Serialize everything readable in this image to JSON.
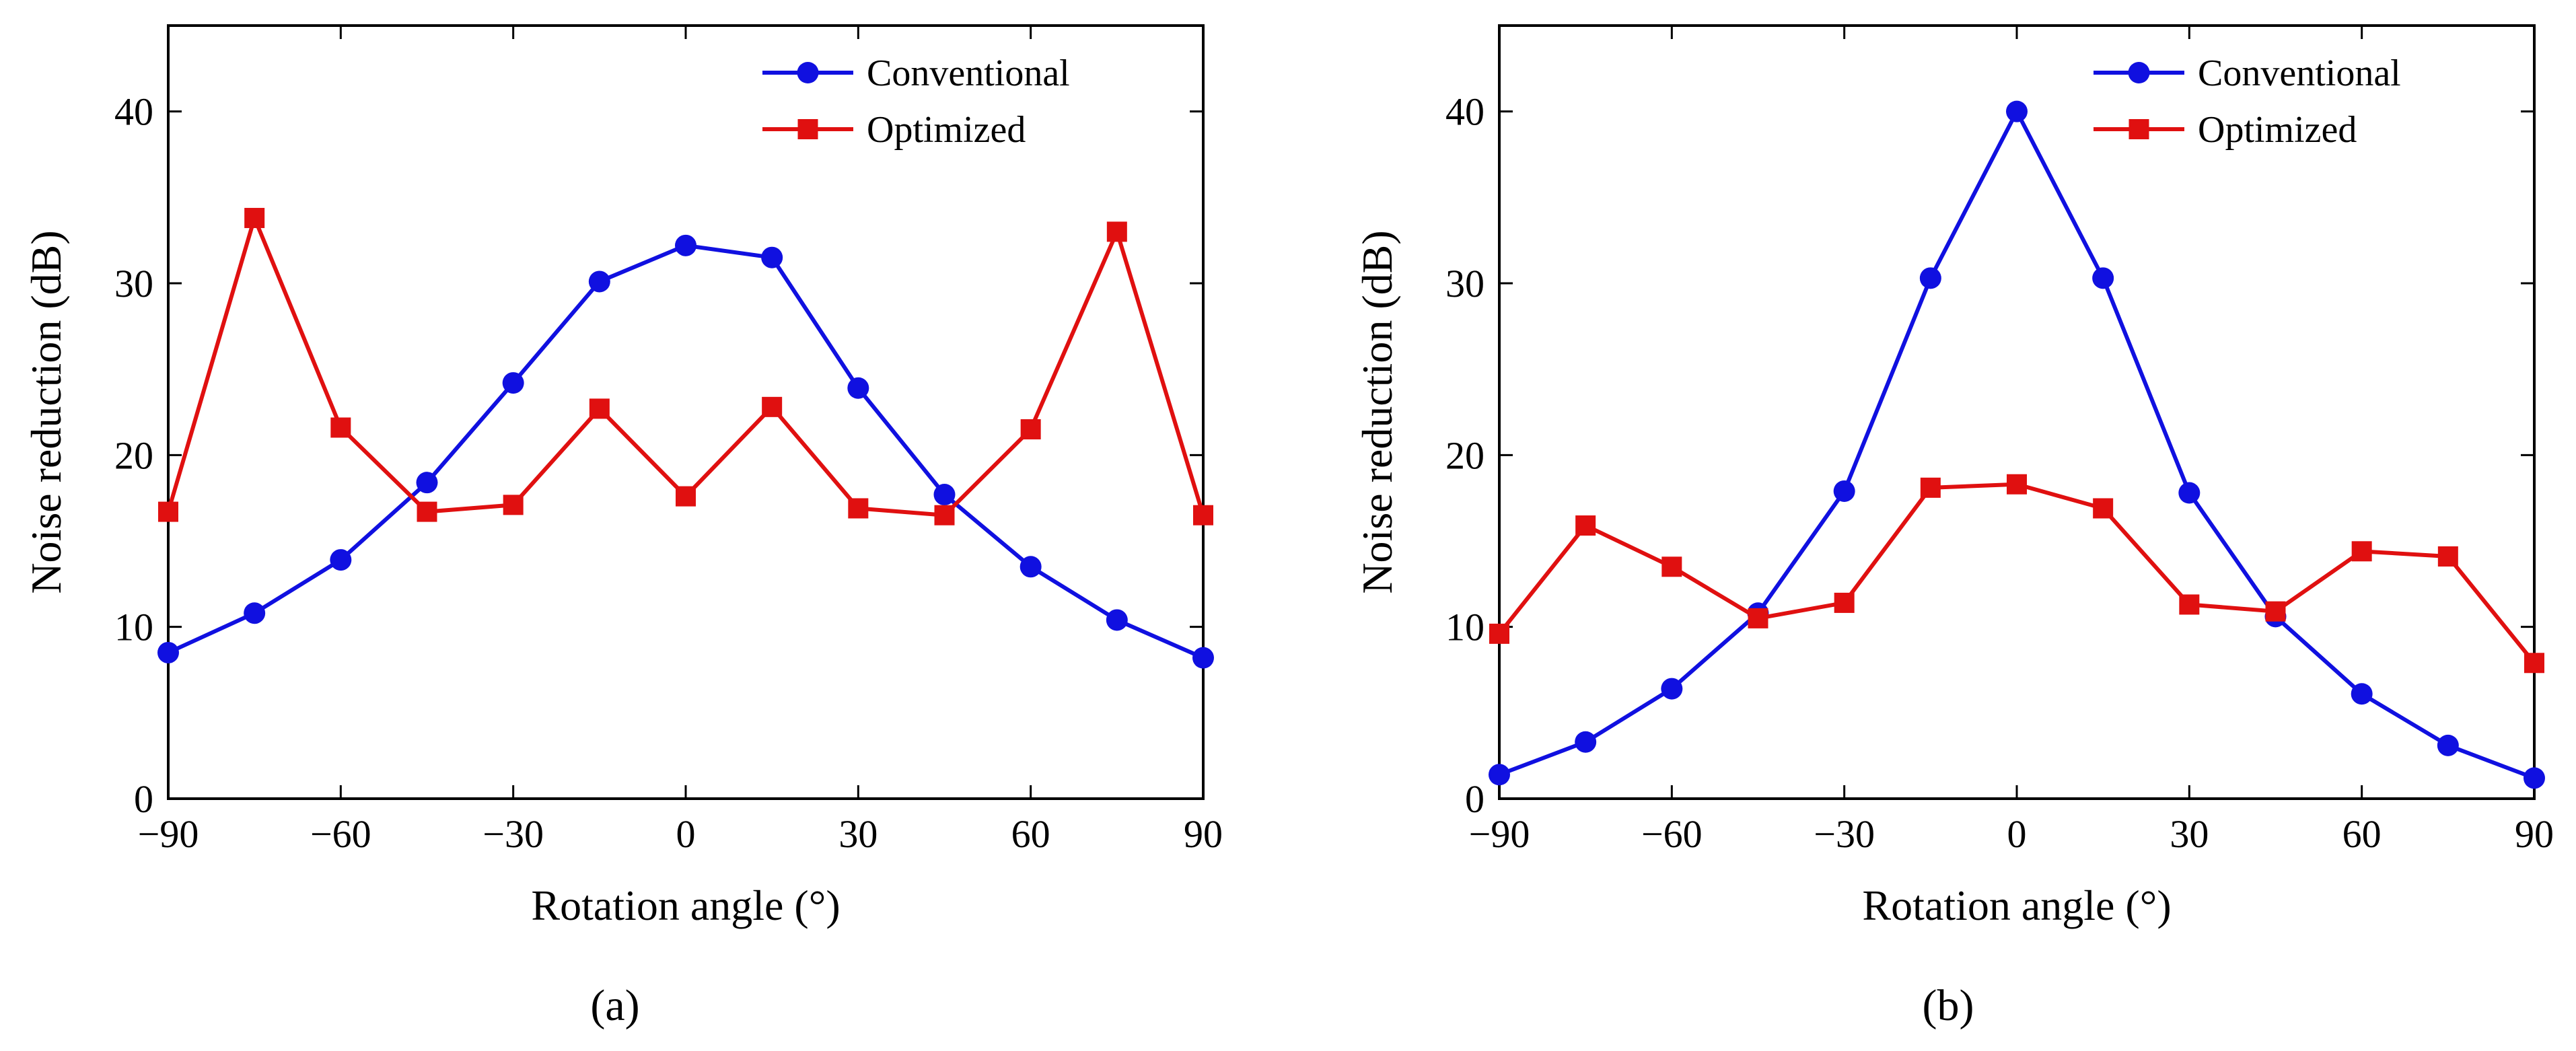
{
  "chart_data": [
    {
      "type": "line",
      "panel_label": "(a)",
      "xlabel": "Rotation angle (°)",
      "ylabel": "Noise reduction (dB)",
      "xlim": [
        -90,
        90
      ],
      "ylim": [
        0,
        45
      ],
      "xticks": [
        "−90",
        "−60",
        "−30",
        "0",
        "30",
        "60",
        "90"
      ],
      "xtick_values": [
        -90,
        -60,
        -30,
        0,
        30,
        60,
        90
      ],
      "yticks": [
        "0",
        "10",
        "20",
        "30",
        "40"
      ],
      "ytick_values": [
        0,
        10,
        20,
        30,
        40
      ],
      "grid": false,
      "legend_position": "top-right",
      "x": [
        -90,
        -75,
        -60,
        -45,
        -30,
        -15,
        0,
        15,
        30,
        45,
        60,
        75,
        90
      ],
      "series": [
        {
          "name": "Conventional",
          "color": "#1010e0",
          "marker": "circle",
          "values": [
            8.5,
            10.8,
            13.9,
            18.4,
            24.2,
            30.1,
            32.2,
            31.5,
            23.9,
            17.7,
            13.5,
            10.4,
            8.2
          ]
        },
        {
          "name": "Optimized",
          "color": "#e01010",
          "marker": "square",
          "values": [
            16.7,
            33.8,
            21.6,
            16.7,
            17.1,
            22.7,
            17.6,
            22.8,
            16.9,
            16.5,
            21.5,
            33.0,
            16.5
          ]
        }
      ]
    },
    {
      "type": "line",
      "panel_label": "(b)",
      "xlabel": "Rotation angle (°)",
      "ylabel": "Noise reduction (dB)",
      "xlim": [
        -90,
        90
      ],
      "ylim": [
        0,
        45
      ],
      "xticks": [
        "−90",
        "−60",
        "−30",
        "0",
        "30",
        "60",
        "90"
      ],
      "xtick_values": [
        -90,
        -60,
        -30,
        0,
        30,
        60,
        90
      ],
      "yticks": [
        "0",
        "10",
        "20",
        "30",
        "40"
      ],
      "ytick_values": [
        0,
        10,
        20,
        30,
        40
      ],
      "grid": false,
      "legend_position": "top-right",
      "x": [
        -90,
        -75,
        -60,
        -45,
        -30,
        -15,
        0,
        15,
        30,
        45,
        60,
        75,
        90
      ],
      "series": [
        {
          "name": "Conventional",
          "color": "#1010e0",
          "marker": "circle",
          "values": [
            1.4,
            3.3,
            6.4,
            10.8,
            17.9,
            30.3,
            40.0,
            30.3,
            17.8,
            10.6,
            6.1,
            3.1,
            1.2
          ]
        },
        {
          "name": "Optimized",
          "color": "#e01010",
          "marker": "square",
          "values": [
            9.6,
            15.9,
            13.5,
            10.5,
            11.4,
            18.1,
            18.3,
            16.9,
            11.3,
            10.9,
            14.4,
            14.1,
            7.9
          ]
        }
      ]
    }
  ]
}
